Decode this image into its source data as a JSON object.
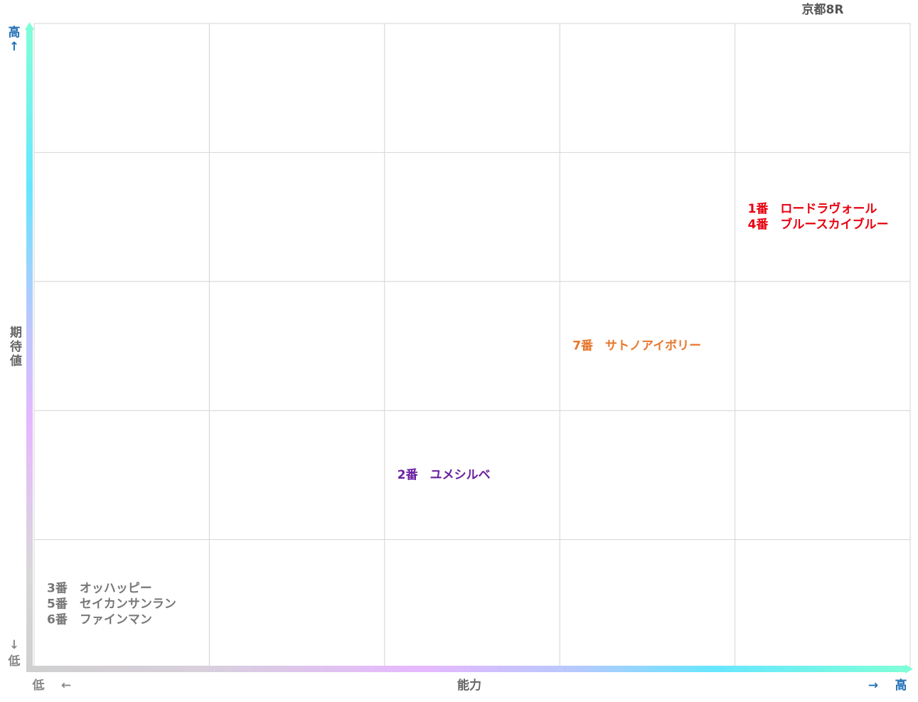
{
  "header": {
    "title": "京都8R"
  },
  "y_axis": {
    "label": "期待値",
    "high": "高",
    "high_arrow": "↑",
    "low_arrow": "↓",
    "low": "低"
  },
  "x_axis": {
    "label": "能力",
    "low": "低",
    "low_arrow": "←",
    "high_arrow": "→",
    "high": "高"
  },
  "grid": {
    "rows": [
      [
        null,
        null,
        null,
        null,
        null
      ],
      [
        null,
        null,
        null,
        null,
        {
          "color": "#e8000f",
          "lines": [
            "1番　ロードラヴォール",
            "4番　ブルースカイブルー"
          ]
        }
      ],
      [
        null,
        null,
        null,
        {
          "color": "#e8772e",
          "lines": [
            "7番　サトノアイボリー"
          ]
        },
        null
      ],
      [
        null,
        null,
        {
          "color": "#6a1fa0",
          "lines": [
            "2番　ユメシルベ"
          ]
        },
        null,
        null
      ],
      [
        {
          "color": "#777777",
          "lines": [
            "3番　オッハッピー",
            "5番　セイカンサンラン",
            "6番　ファインマン"
          ]
        },
        null,
        null,
        null,
        null
      ]
    ]
  }
}
